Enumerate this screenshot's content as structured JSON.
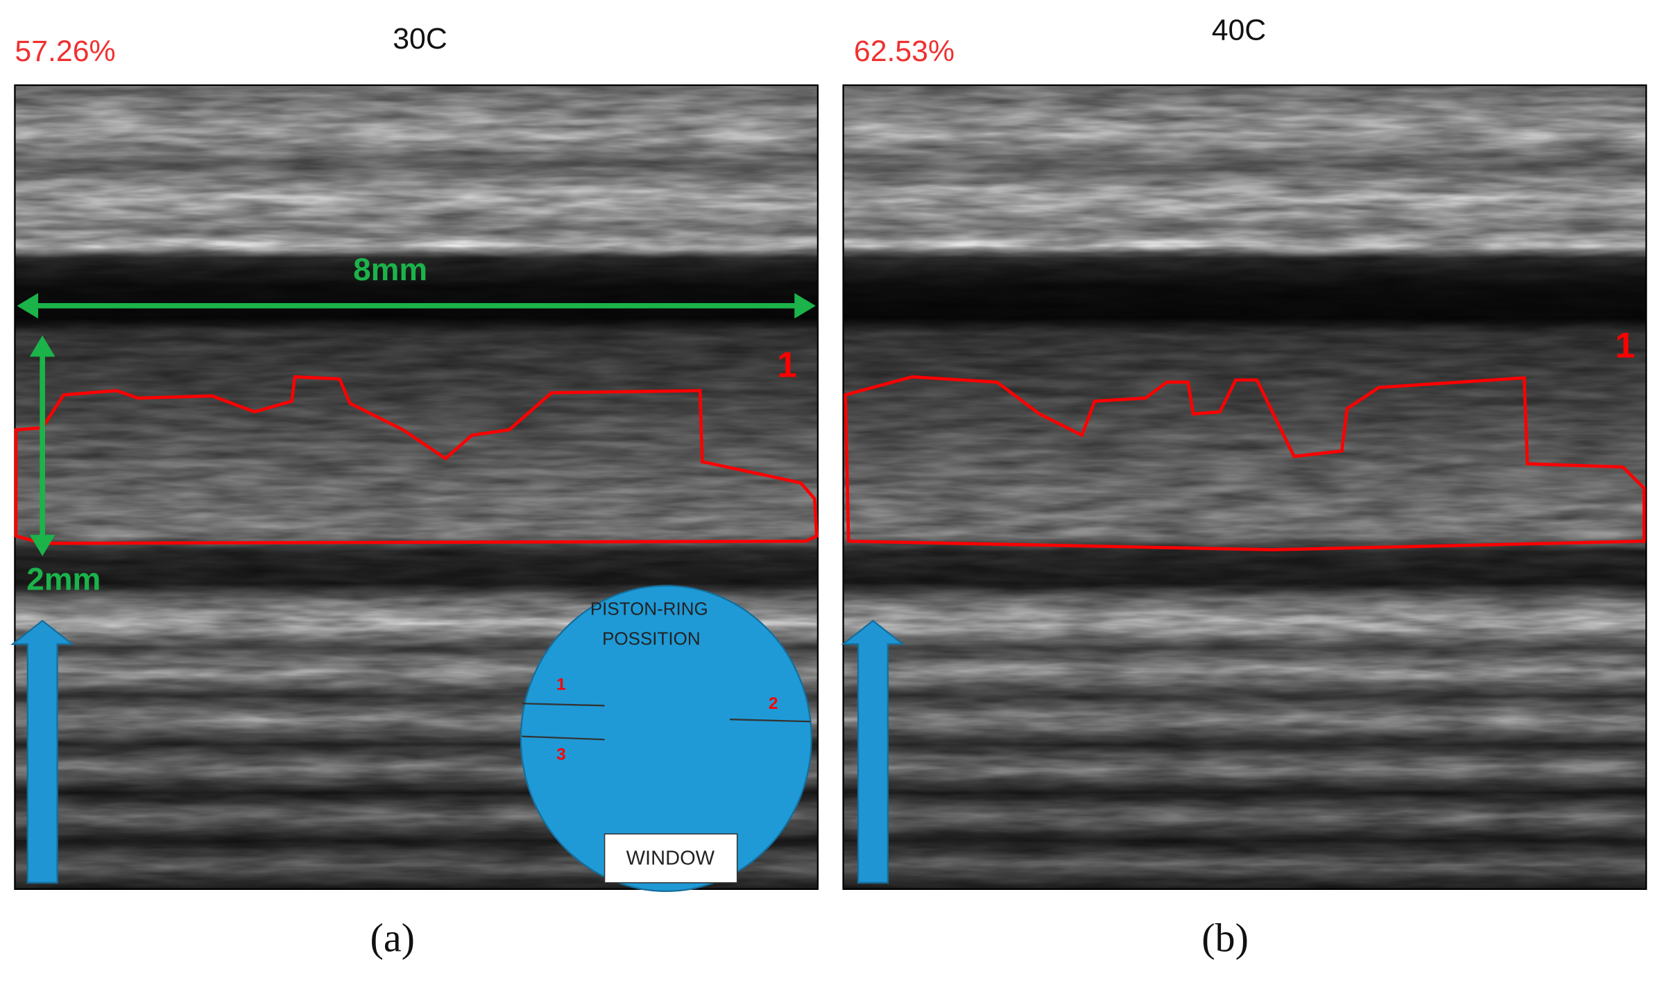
{
  "panels": [
    {
      "percent": "57.26%",
      "temperature": "30C",
      "region_label": "1",
      "caption": "(a)"
    },
    {
      "percent": "62.53%",
      "temperature": "40C",
      "region_label": "1",
      "caption": "(b)"
    }
  ],
  "scale": {
    "width": "8mm",
    "height": "2mm"
  },
  "inset": {
    "title_line1": "PISTON-RING",
    "title_line2": "POSSITION",
    "positions": [
      "1",
      "2",
      "3"
    ],
    "window": "WINDOW"
  }
}
